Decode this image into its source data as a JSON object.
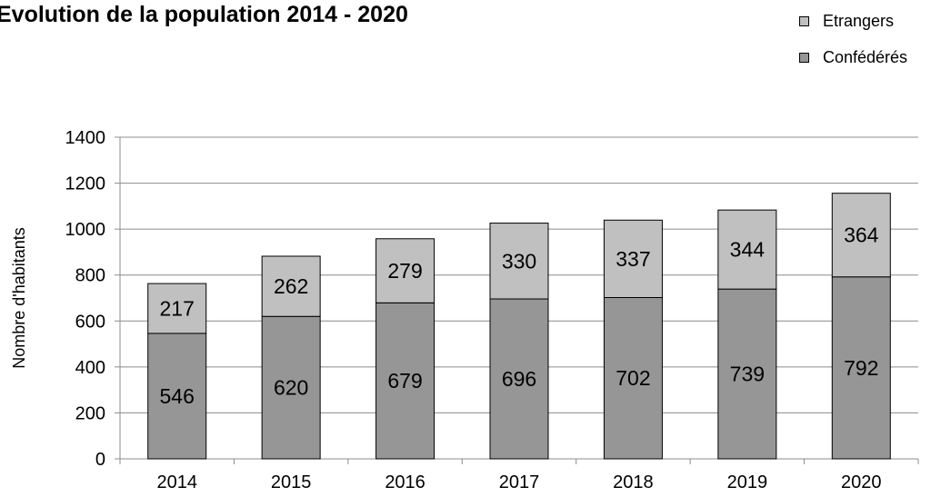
{
  "chart_data": {
    "type": "bar",
    "stacked": true,
    "title": "Evolution de la population 2014 - 2020",
    "ylabel": "Nombre d'habitants",
    "xlabel": "",
    "categories": [
      "2014",
      "2015",
      "2016",
      "2017",
      "2018",
      "2019",
      "2020"
    ],
    "ylim": [
      0,
      1400
    ],
    "yticks": [
      0,
      200,
      400,
      600,
      800,
      1000,
      1200,
      1400
    ],
    "grid": true,
    "legend_position": "top-right",
    "series": [
      {
        "name": "Confédérés",
        "values": [
          546,
          620,
          679,
          696,
          702,
          739,
          792
        ],
        "color": "#969696"
      },
      {
        "name": "Etrangers",
        "values": [
          217,
          262,
          279,
          330,
          337,
          344,
          364
        ],
        "color": "#c0c0c0"
      }
    ]
  },
  "legend": [
    {
      "label": "Etrangers",
      "color": "#c0c0c0"
    },
    {
      "label": "Confédérés",
      "color": "#969696"
    }
  ]
}
